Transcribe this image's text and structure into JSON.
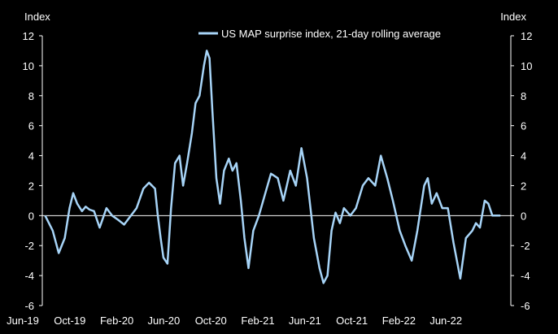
{
  "chart_data": {
    "type": "line",
    "left_axis_label": "Index",
    "right_axis_label": "Index",
    "ylim": [
      -6,
      12
    ],
    "y_ticks": [
      12,
      10,
      8,
      6,
      4,
      2,
      0,
      -2,
      -4,
      -6
    ],
    "x_ticks": [
      "Jun-19",
      "Oct-19",
      "Feb-20",
      "Jun-20",
      "Oct-20",
      "Feb-21",
      "Jun-21",
      "Oct-21",
      "Feb-22",
      "Jun-22"
    ],
    "zero_line": true,
    "legend_position": "top-right",
    "series": [
      {
        "name": "US MAP surprise index, 21-day rolling average",
        "color": "#a7d4f7",
        "x": [
          "2019-06-01",
          "2019-06-20",
          "2019-07-05",
          "2019-07-20",
          "2019-08-01",
          "2019-08-10",
          "2019-08-20",
          "2019-09-01",
          "2019-09-10",
          "2019-09-20",
          "2019-10-01",
          "2019-10-15",
          "2019-11-01",
          "2019-11-15",
          "2019-12-01",
          "2019-12-15",
          "2020-01-01",
          "2020-01-15",
          "2020-02-01",
          "2020-02-15",
          "2020-03-01",
          "2020-03-08",
          "2020-03-15",
          "2020-03-22",
          "2020-04-01",
          "2020-04-10",
          "2020-04-20",
          "2020-05-01",
          "2020-05-10",
          "2020-05-20",
          "2020-06-01",
          "2020-06-10",
          "2020-06-20",
          "2020-07-01",
          "2020-07-08",
          "2020-07-15",
          "2020-07-22",
          "2020-08-01",
          "2020-08-10",
          "2020-08-20",
          "2020-09-01",
          "2020-09-10",
          "2020-09-20",
          "2020-10-01",
          "2020-10-10",
          "2020-10-20",
          "2020-11-01",
          "2020-11-15",
          "2020-12-01",
          "2020-12-15",
          "2021-01-01",
          "2021-01-15",
          "2021-02-01",
          "2021-02-15",
          "2021-03-01",
          "2021-03-15",
          "2021-04-01",
          "2021-04-15",
          "2021-04-25",
          "2021-05-05",
          "2021-05-15",
          "2021-05-25",
          "2021-06-05",
          "2021-06-15",
          "2021-07-01",
          "2021-07-15",
          "2021-08-01",
          "2021-08-15",
          "2021-09-01",
          "2021-09-15",
          "2021-10-01",
          "2021-10-15",
          "2021-11-01",
          "2021-11-15",
          "2021-12-01",
          "2021-12-15",
          "2022-01-01",
          "2022-01-10",
          "2022-01-20",
          "2022-02-01",
          "2022-02-15",
          "2022-03-01",
          "2022-03-15",
          "2022-04-01",
          "2022-04-15",
          "2022-05-01",
          "2022-05-10",
          "2022-05-20",
          "2022-06-01",
          "2022-06-10",
          "2022-06-20",
          "2022-07-01",
          "2022-07-10"
        ],
        "values": [
          0.0,
          -1.0,
          -2.5,
          -1.5,
          0.5,
          1.5,
          0.8,
          0.3,
          0.6,
          0.4,
          0.3,
          -0.8,
          0.5,
          0.0,
          -0.3,
          -0.6,
          0.0,
          0.5,
          1.8,
          2.2,
          1.8,
          0.0,
          -1.5,
          -2.8,
          -3.2,
          0.5,
          3.5,
          4.0,
          2.0,
          3.5,
          5.5,
          7.5,
          8.0,
          10.0,
          11.0,
          10.5,
          7.0,
          2.5,
          0.8,
          3.0,
          3.8,
          3.0,
          3.5,
          1.0,
          -1.5,
          -3.5,
          -1.0,
          0.0,
          1.5,
          2.8,
          2.5,
          1.0,
          3.0,
          2.0,
          4.5,
          2.5,
          -1.5,
          -3.5,
          -4.5,
          -4.0,
          -1.0,
          0.2,
          -0.5,
          0.5,
          0.0,
          0.5,
          2.0,
          2.5,
          2.0,
          4.0,
          2.5,
          1.0,
          -1.0,
          -2.0,
          -3.0,
          -1.0,
          2.0,
          2.5,
          0.8,
          1.5,
          0.5,
          0.5,
          -1.8,
          -4.2,
          -1.5,
          -1.0,
          -0.5,
          -0.8,
          1.0,
          0.8,
          0.0,
          0.0,
          0.0
        ]
      }
    ]
  }
}
